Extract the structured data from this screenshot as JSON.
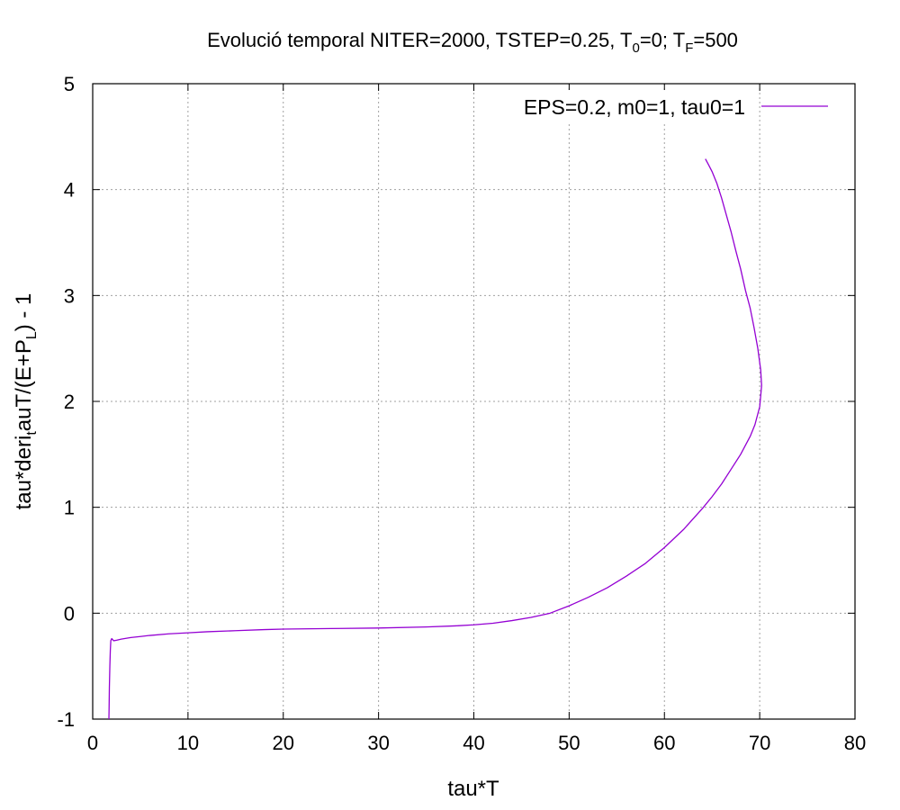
{
  "chart_data": {
    "type": "line",
    "title": {
      "prefix": "Evolució temporal NITER=2000, TSTEP=0.25, T",
      "sub0": "0",
      "mid": "=0; T",
      "sub1": "F",
      "suffix": "=500"
    },
    "xlabel": "tau*T",
    "ylabel": {
      "part1": "tau*deri",
      "sub_t": "t",
      "part2": "auT/(E+P",
      "sub_L": "L",
      "part3": ")  -  1"
    },
    "xlim": [
      0,
      80
    ],
    "ylim": [
      -1,
      5
    ],
    "x_ticks": [
      0,
      10,
      20,
      30,
      40,
      50,
      60,
      70,
      80
    ],
    "y_ticks": [
      -1,
      0,
      1,
      2,
      3,
      4,
      5
    ],
    "x_tick_labels": [
      "0",
      "10",
      "20",
      "30",
      "40",
      "50",
      "60",
      "70",
      "80"
    ],
    "y_tick_labels": [
      "-1",
      "0",
      "1",
      "2",
      "3",
      "4",
      "5"
    ],
    "grid": true,
    "legend_position": "top-right",
    "series": [
      {
        "name": "EPS=0.2, m0=1, tau0=1",
        "color": "#9400d3",
        "x": [
          1.7,
          1.72,
          1.75,
          1.8,
          1.85,
          1.9,
          2.0,
          2.2,
          2.5,
          3,
          4,
          5,
          6,
          8,
          10,
          12,
          15,
          18,
          20,
          25,
          30,
          35,
          38,
          40,
          42,
          44,
          46,
          48,
          50,
          52,
          54,
          56,
          58,
          60,
          62,
          64,
          65,
          66,
          67,
          68,
          69,
          69.5,
          70,
          70.2,
          70.1,
          69.8,
          69.4,
          69,
          68.5,
          68,
          67.5,
          67,
          66.5,
          66,
          65.5,
          65,
          64.6,
          64.3
        ],
        "y": [
          -1.0,
          -0.9,
          -0.7,
          -0.5,
          -0.35,
          -0.26,
          -0.24,
          -0.26,
          -0.255,
          -0.245,
          -0.23,
          -0.22,
          -0.21,
          -0.195,
          -0.185,
          -0.175,
          -0.165,
          -0.155,
          -0.15,
          -0.145,
          -0.14,
          -0.13,
          -0.12,
          -0.11,
          -0.095,
          -0.07,
          -0.04,
          0.0,
          0.07,
          0.15,
          0.24,
          0.35,
          0.47,
          0.62,
          0.79,
          0.99,
          1.1,
          1.22,
          1.36,
          1.5,
          1.67,
          1.78,
          1.95,
          2.15,
          2.3,
          2.5,
          2.7,
          2.88,
          3.05,
          3.25,
          3.42,
          3.6,
          3.76,
          3.92,
          4.06,
          4.17,
          4.24,
          4.29
        ]
      }
    ]
  }
}
